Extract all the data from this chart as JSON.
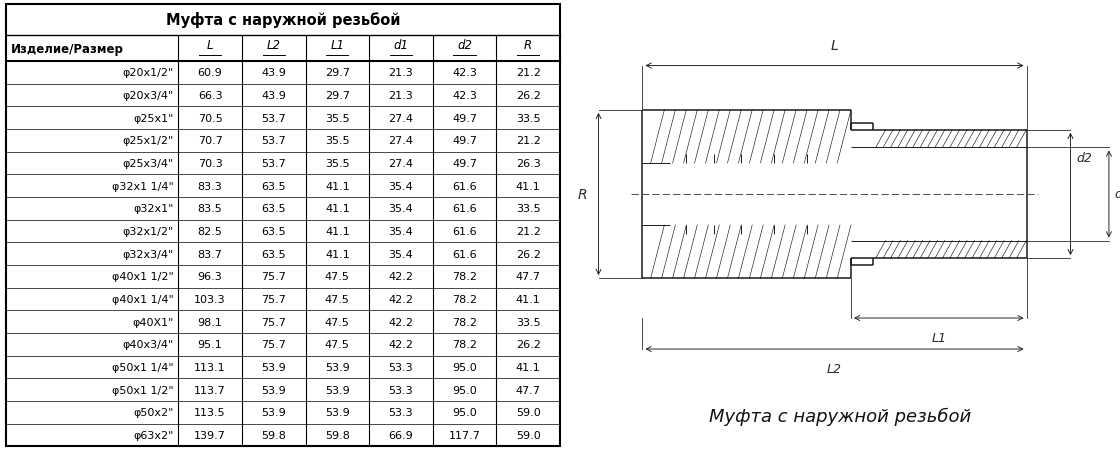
{
  "title": "Муфта с наружной резьбой",
  "columns": [
    "Изделие/Размер",
    "L",
    "L2",
    "L1",
    "d1",
    "d2",
    "R"
  ],
  "rows": [
    [
      "φ20x1/2\"",
      "60.9",
      "43.9",
      "29.7",
      "21.3",
      "42.3",
      "21.2"
    ],
    [
      "φ20x3/4\"",
      "66.3",
      "43.9",
      "29.7",
      "21.3",
      "42.3",
      "26.2"
    ],
    [
      "φ25x1\"",
      "70.5",
      "53.7",
      "35.5",
      "27.4",
      "49.7",
      "33.5"
    ],
    [
      "φ25x1/2\"",
      "70.7",
      "53.7",
      "35.5",
      "27.4",
      "49.7",
      "21.2"
    ],
    [
      "φ25x3/4\"",
      "70.3",
      "53.7",
      "35.5",
      "27.4",
      "49.7",
      "26.3"
    ],
    [
      "φ32x1 1/4\"",
      "83.3",
      "63.5",
      "41.1",
      "35.4",
      "61.6",
      "41.1"
    ],
    [
      "φ32x1\"",
      "83.5",
      "63.5",
      "41.1",
      "35.4",
      "61.6",
      "33.5"
    ],
    [
      "φ32x1/2\"",
      "82.5",
      "63.5",
      "41.1",
      "35.4",
      "61.6",
      "21.2"
    ],
    [
      "φ32x3/4\"",
      "83.7",
      "63.5",
      "41.1",
      "35.4",
      "61.6",
      "26.2"
    ],
    [
      "φ40x1 1/2\"",
      "96.3",
      "75.7",
      "47.5",
      "42.2",
      "78.2",
      "47.7"
    ],
    [
      "φ40x1 1/4\"",
      "103.3",
      "75.7",
      "47.5",
      "42.2",
      "78.2",
      "41.1"
    ],
    [
      "φ40X1\"",
      "98.1",
      "75.7",
      "47.5",
      "42.2",
      "78.2",
      "33.5"
    ],
    [
      "φ40x3/4\"",
      "95.1",
      "75.7",
      "47.5",
      "42.2",
      "78.2",
      "26.2"
    ],
    [
      "φ50x1 1/4\"",
      "113.1",
      "53.9",
      "53.9",
      "53.3",
      "95.0",
      "41.1"
    ],
    [
      "φ50x1 1/2\"",
      "113.7",
      "53.9",
      "53.9",
      "53.3",
      "95.0",
      "47.7"
    ],
    [
      "φ50x2\"",
      "113.5",
      "53.9",
      "53.9",
      "53.3",
      "95.0",
      "59.0"
    ],
    [
      "φ63x2\"",
      "139.7",
      "59.8",
      "59.8",
      "66.9",
      "117.7",
      "59.0"
    ]
  ],
  "bg_color": "#ffffff",
  "border_color": "#000000",
  "text_color": "#000000",
  "font_size": 8.0,
  "title_font_size": 10.5,
  "header_font_size": 8.5
}
